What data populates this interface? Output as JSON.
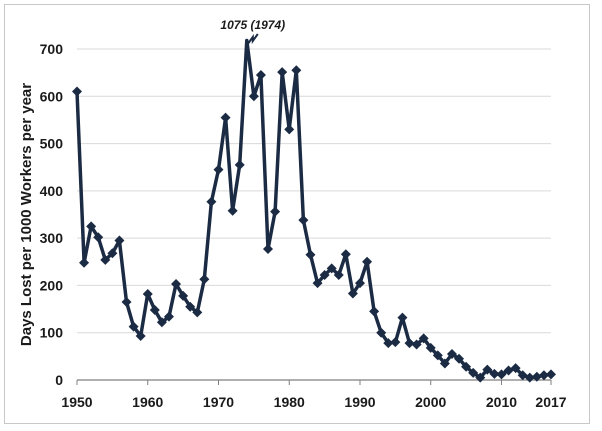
{
  "chart_data": {
    "type": "line",
    "title": "",
    "xlabel": "",
    "ylabel": "Days Lost per 1000 Workers per year",
    "ylim": [
      0,
      700
    ],
    "xlim": [
      1950,
      2017
    ],
    "grid": "horizontal",
    "legend": "none",
    "y_ticks": [
      0,
      100,
      200,
      300,
      400,
      500,
      600,
      700
    ],
    "x_ticks": [
      1950,
      1960,
      1970,
      1980,
      1990,
      2000,
      2010,
      2017
    ],
    "annotation": "1075 (1974)",
    "colors": {
      "line": "#1c2b44",
      "grid": "#d9d9d9",
      "axis": "#7f7f7f"
    },
    "series": [
      {
        "marker": "diamond",
        "x": [
          1950,
          1951,
          1952,
          1953,
          1954,
          1955,
          1956,
          1957,
          1958,
          1959,
          1960,
          1961,
          1962,
          1963,
          1964,
          1965,
          1966,
          1967,
          1968,
          1969,
          1970,
          1971,
          1972,
          1973,
          1974,
          1975,
          1976,
          1977,
          1978,
          1979,
          1980,
          1981,
          1982,
          1983,
          1984,
          1985,
          1986,
          1987,
          1988,
          1989,
          1990,
          1991,
          1992,
          1993,
          1994,
          1995,
          1996,
          1997,
          1998,
          1999,
          2000,
          2001,
          2002,
          2003,
          2004,
          2005,
          2006,
          2007,
          2008,
          2009,
          2010,
          2011,
          2012,
          2013,
          2014,
          2015,
          2016,
          2017
        ],
        "y": [
          610,
          248,
          325,
          302,
          254,
          268,
          295,
          165,
          113,
          93,
          182,
          148,
          122,
          134,
          203,
          178,
          155,
          143,
          213,
          377,
          445,
          555,
          358,
          455,
          1075,
          600,
          645,
          277,
          356,
          651,
          530,
          655,
          338,
          265,
          205,
          222,
          236,
          222,
          266,
          183,
          205,
          250,
          145,
          100,
          78,
          80,
          132,
          78,
          75,
          88,
          68,
          52,
          35,
          55,
          45,
          28,
          15,
          5,
          22,
          13,
          12,
          20,
          25,
          10,
          5,
          7,
          10,
          12
        ]
      }
    ]
  }
}
